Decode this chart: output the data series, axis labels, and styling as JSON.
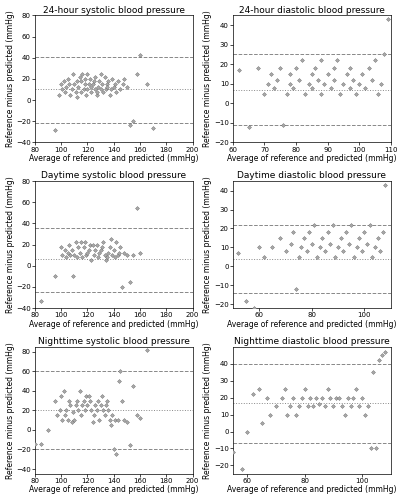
{
  "panels": [
    {
      "title": "24-hour systolic blood pressure",
      "xlabel": "Average of reference and predicted (mmHg)",
      "ylabel": "Reference minus predicted (mmHg)",
      "xlim": [
        80,
        200
      ],
      "ylim": [
        -40,
        80
      ],
      "xticks": [
        80,
        100,
        120,
        140,
        160,
        180,
        200
      ],
      "yticks": [
        -40,
        -20,
        0,
        20,
        40,
        60,
        80
      ],
      "bias": 10,
      "upper_loa": 41,
      "lower_loa": -22,
      "x": [
        95,
        98,
        100,
        101,
        102,
        103,
        104,
        105,
        106,
        107,
        108,
        109,
        110,
        111,
        112,
        112,
        113,
        114,
        115,
        115,
        116,
        117,
        118,
        118,
        119,
        120,
        120,
        121,
        122,
        123,
        123,
        124,
        125,
        126,
        126,
        127,
        127,
        128,
        129,
        130,
        130,
        131,
        132,
        133,
        134,
        135,
        135,
        136,
        137,
        138,
        139,
        140,
        141,
        142,
        143,
        145,
        147,
        148,
        150,
        152,
        155,
        158,
        160,
        165,
        170
      ],
      "y": [
        -28,
        5,
        15,
        10,
        18,
        8,
        12,
        20,
        15,
        5,
        10,
        25,
        15,
        8,
        18,
        3,
        12,
        22,
        8,
        18,
        25,
        10,
        15,
        20,
        5,
        25,
        10,
        15,
        20,
        8,
        12,
        15,
        18,
        22,
        10,
        5,
        8,
        12,
        18,
        25,
        10,
        15,
        8,
        22,
        10,
        15,
        12,
        18,
        5,
        10,
        20,
        12,
        15,
        8,
        18,
        10,
        15,
        20,
        12,
        -24,
        -20,
        25,
        43,
        15,
        -26
      ]
    },
    {
      "title": "24-hour diastolic blood pressure",
      "xlabel": "Average of reference and predicted (mmHg)",
      "ylabel": "Reference minus predicted (mmHg)",
      "xlim": [
        60,
        110
      ],
      "ylim": [
        -20,
        45
      ],
      "xticks": [
        60,
        70,
        80,
        90,
        100,
        110
      ],
      "yticks": [
        -20,
        -10,
        0,
        10,
        20,
        30,
        40
      ],
      "bias": 7,
      "upper_loa": 25,
      "lower_loa": -11,
      "x": [
        62,
        65,
        68,
        70,
        71,
        72,
        73,
        74,
        75,
        76,
        77,
        78,
        78,
        79,
        80,
        81,
        82,
        83,
        84,
        85,
        85,
        86,
        87,
        88,
        88,
        89,
        90,
        91,
        92,
        92,
        93,
        94,
        95,
        96,
        97,
        97,
        98,
        99,
        100,
        101,
        102,
        103,
        104,
        105,
        106,
        107,
        108,
        109
      ],
      "y": [
        17,
        -12,
        18,
        5,
        10,
        15,
        8,
        12,
        18,
        -11,
        5,
        10,
        15,
        8,
        18,
        12,
        22,
        5,
        10,
        15,
        8,
        18,
        12,
        22,
        5,
        10,
        15,
        8,
        18,
        12,
        22,
        5,
        10,
        15,
        8,
        18,
        12,
        5,
        10,
        15,
        8,
        18,
        12,
        22,
        5,
        10,
        25,
        43
      ]
    },
    {
      "title": "Daytime systolic blood pressure",
      "xlabel": "Average of reference and predicted (mmHg)",
      "ylabel": "Reference minus predicted (mmHg)",
      "xlim": [
        80,
        200
      ],
      "ylim": [
        -40,
        80
      ],
      "xticks": [
        80,
        100,
        120,
        140,
        160,
        180,
        200
      ],
      "yticks": [
        -40,
        -20,
        0,
        20,
        40,
        60,
        80
      ],
      "bias": 6,
      "upper_loa": 36,
      "lower_loa": -25,
      "x": [
        85,
        95,
        100,
        101,
        103,
        104,
        105,
        106,
        107,
        108,
        109,
        110,
        111,
        112,
        113,
        114,
        115,
        116,
        117,
        118,
        119,
        120,
        121,
        122,
        123,
        124,
        125,
        126,
        127,
        128,
        129,
        130,
        131,
        132,
        133,
        134,
        135,
        136,
        137,
        138,
        139,
        140,
        141,
        142,
        143,
        144,
        145,
        146,
        148,
        150,
        152,
        155,
        158,
        160
      ],
      "y": [
        -33,
        -10,
        18,
        10,
        15,
        8,
        12,
        20,
        10,
        15,
        -10,
        10,
        22,
        8,
        18,
        12,
        22,
        8,
        18,
        22,
        10,
        12,
        15,
        20,
        5,
        20,
        10,
        15,
        20,
        8,
        12,
        15,
        18,
        22,
        10,
        5,
        8,
        12,
        18,
        25,
        10,
        15,
        8,
        22,
        10,
        12,
        18,
        -20,
        12,
        10,
        -15,
        10,
        55,
        12
      ]
    },
    {
      "title": "Daytime diastolic blood pressure",
      "xlabel": "Average of reference and predicted (mmHg)",
      "ylabel": "Reference minus predicted (mmHg)",
      "xlim": [
        50,
        110
      ],
      "ylim": [
        -22,
        45
      ],
      "xticks": [
        60,
        80,
        100
      ],
      "yticks": [
        -20,
        -10,
        0,
        10,
        20,
        30,
        40
      ],
      "bias": 4,
      "upper_loa": 22,
      "lower_loa": -14,
      "x": [
        52,
        55,
        58,
        60,
        62,
        65,
        68,
        70,
        72,
        73,
        74,
        75,
        76,
        77,
        78,
        79,
        80,
        81,
        82,
        83,
        84,
        85,
        86,
        87,
        88,
        89,
        90,
        91,
        92,
        93,
        94,
        95,
        96,
        97,
        98,
        99,
        100,
        101,
        102,
        103,
        104,
        105,
        106,
        107,
        108
      ],
      "y": [
        7,
        -18,
        -22,
        10,
        5,
        10,
        15,
        8,
        12,
        18,
        -12,
        5,
        10,
        15,
        8,
        18,
        12,
        22,
        5,
        10,
        15,
        8,
        18,
        12,
        22,
        5,
        10,
        15,
        8,
        18,
        12,
        22,
        5,
        10,
        15,
        8,
        18,
        12,
        22,
        5,
        10,
        15,
        8,
        18,
        43
      ]
    },
    {
      "title": "Nighttime systolic blood pressure",
      "xlabel": "Average of reference and predicted (mmHg)",
      "ylabel": "Reference minus predicted (mmHg)",
      "xlim": [
        80,
        200
      ],
      "ylim": [
        -45,
        85
      ],
      "xticks": [
        80,
        100,
        120,
        140,
        160,
        180,
        200
      ],
      "yticks": [
        -40,
        -20,
        0,
        20,
        40,
        60,
        80
      ],
      "bias": 20,
      "upper_loa": 60,
      "lower_loa": -20,
      "x": [
        80,
        85,
        90,
        95,
        97,
        99,
        100,
        101,
        102,
        103,
        104,
        105,
        106,
        107,
        108,
        109,
        110,
        111,
        112,
        113,
        114,
        115,
        116,
        117,
        118,
        119,
        120,
        121,
        122,
        123,
        124,
        125,
        126,
        127,
        128,
        129,
        130,
        131,
        132,
        133,
        134,
        135,
        136,
        137,
        138,
        139,
        140,
        141,
        142,
        143,
        144,
        145,
        146,
        148,
        150,
        152,
        155,
        158,
        160,
        165
      ],
      "y": [
        -14,
        -14,
        0,
        30,
        15,
        20,
        35,
        10,
        40,
        15,
        20,
        10,
        30,
        25,
        8,
        18,
        10,
        25,
        30,
        20,
        40,
        15,
        25,
        30,
        20,
        35,
        25,
        35,
        30,
        20,
        8,
        15,
        25,
        20,
        30,
        10,
        25,
        35,
        20,
        15,
        25,
        30,
        20,
        10,
        5,
        15,
        -20,
        10,
        -25,
        10,
        50,
        60,
        30,
        10,
        8,
        -15,
        45,
        15,
        12,
        82
      ]
    },
    {
      "title": "Nighttime diastolic blood pressure",
      "xlabel": "Average of reference and predicted (mmHg)",
      "ylabel": "Reference minus predicted (mmHg)",
      "xlim": [
        55,
        110
      ],
      "ylim": [
        -25,
        50
      ],
      "xticks": [
        60,
        80,
        100
      ],
      "yticks": [
        -20,
        -10,
        0,
        10,
        20,
        30,
        40
      ],
      "bias": 17,
      "upper_loa": 40,
      "lower_loa": -7,
      "x": [
        55,
        58,
        60,
        62,
        64,
        65,
        67,
        68,
        70,
        72,
        73,
        74,
        75,
        76,
        77,
        78,
        79,
        80,
        81,
        82,
        83,
        84,
        85,
        86,
        87,
        88,
        89,
        90,
        91,
        92,
        93,
        94,
        95,
        96,
        97,
        98,
        99,
        100,
        101,
        102,
        103,
        104,
        105,
        106,
        107,
        108
      ],
      "y": [
        -12,
        -22,
        0,
        22,
        25,
        5,
        20,
        10,
        15,
        20,
        25,
        10,
        15,
        20,
        10,
        15,
        20,
        25,
        15,
        20,
        15,
        20,
        16,
        20,
        15,
        25,
        20,
        15,
        20,
        20,
        15,
        10,
        20,
        15,
        20,
        25,
        15,
        20,
        10,
        15,
        -10,
        35,
        -10,
        42,
        45,
        47
      ]
    }
  ],
  "marker": "D",
  "markersize": 2.0,
  "marker_facecolor": "#aaaaaa",
  "marker_edgecolor": "#666666",
  "marker_linewidth": 0.3,
  "bias_color": "#888888",
  "loa_color": "#888888",
  "bias_linestyle": "dotted",
  "loa_linestyle": "dashed",
  "title_fontsize": 6.5,
  "label_fontsize": 5.5,
  "tick_fontsize": 5.0,
  "figure_bg": "#ffffff",
  "line_linewidth": 0.7
}
